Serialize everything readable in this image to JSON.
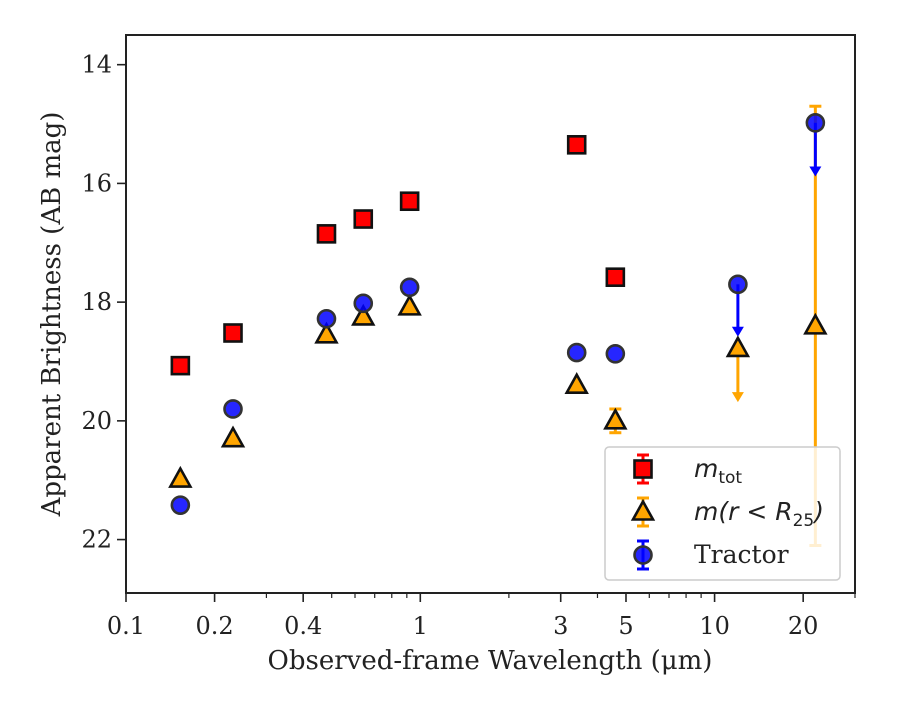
{
  "chart_data": {
    "type": "scatter",
    "title": "",
    "xlabel": "Observed-frame Wavelength (μm)",
    "ylabel": "Apparent Brightness (AB mag)",
    "xscale": "log",
    "xlim": [
      0.1,
      30
    ],
    "ylim": [
      22.9,
      13.5
    ],
    "y_inverted": true,
    "grid": false,
    "legend_position": "lower-right",
    "x_tick_labels": [
      "0.1",
      "0.2",
      "0.4",
      "1",
      "3",
      "5",
      "10",
      "20"
    ],
    "x_ticks": [
      0.1,
      0.2,
      0.4,
      1,
      3,
      5,
      10,
      20
    ],
    "y_tick_labels": [
      "14",
      "16",
      "18",
      "20",
      "22"
    ],
    "y_ticks": [
      14,
      16,
      18,
      20,
      22
    ],
    "colors": {
      "mtot": "#ff0000",
      "m25": "#ffa500",
      "tractor": "#0000ff",
      "axes": "#222222"
    },
    "series": [
      {
        "name": "m_tot",
        "marker": "square",
        "points": [
          {
            "x": 0.153,
            "y": 19.07
          },
          {
            "x": 0.231,
            "y": 18.52
          },
          {
            "x": 0.48,
            "y": 16.85
          },
          {
            "x": 0.64,
            "y": 16.6
          },
          {
            "x": 0.92,
            "y": 16.3
          },
          {
            "x": 3.4,
            "y": 15.35
          },
          {
            "x": 4.6,
            "y": 17.58
          }
        ]
      },
      {
        "name": "m(r < R25)",
        "marker": "triangle",
        "points": [
          {
            "x": 0.153,
            "y": 20.98
          },
          {
            "x": 0.231,
            "y": 20.3
          },
          {
            "x": 0.48,
            "y": 18.55
          },
          {
            "x": 0.64,
            "y": 18.25
          },
          {
            "x": 0.92,
            "y": 18.08
          },
          {
            "x": 3.4,
            "y": 19.4
          },
          {
            "x": 4.6,
            "y": 20.0,
            "err": 0.2
          },
          {
            "x": 12.0,
            "y": 18.78,
            "upper_limit": true,
            "arrow_to": 19.65
          },
          {
            "x": 22.0,
            "y": 18.4,
            "err_low": 3.7,
            "err_high": 3.7
          }
        ]
      },
      {
        "name": "Tractor",
        "marker": "circle",
        "points": [
          {
            "x": 0.153,
            "y": 21.42
          },
          {
            "x": 0.231,
            "y": 19.8
          },
          {
            "x": 0.48,
            "y": 18.28
          },
          {
            "x": 0.64,
            "y": 18.02
          },
          {
            "x": 0.92,
            "y": 17.75
          },
          {
            "x": 3.4,
            "y": 18.85
          },
          {
            "x": 4.6,
            "y": 18.87
          },
          {
            "x": 12.0,
            "y": 17.7,
            "upper_limit": true,
            "arrow_to": 18.55
          },
          {
            "x": 22.0,
            "y": 14.98,
            "upper_limit": true,
            "arrow_to": 15.85
          }
        ]
      }
    ],
    "legend": [
      {
        "label_base": "m",
        "label_sub": "tot",
        "label_suffix": ""
      },
      {
        "label_base": "m(r < R",
        "label_sub": "25",
        "label_suffix": ")"
      },
      {
        "label_base": "Tractor",
        "label_sub": "",
        "label_suffix": ""
      }
    ]
  }
}
